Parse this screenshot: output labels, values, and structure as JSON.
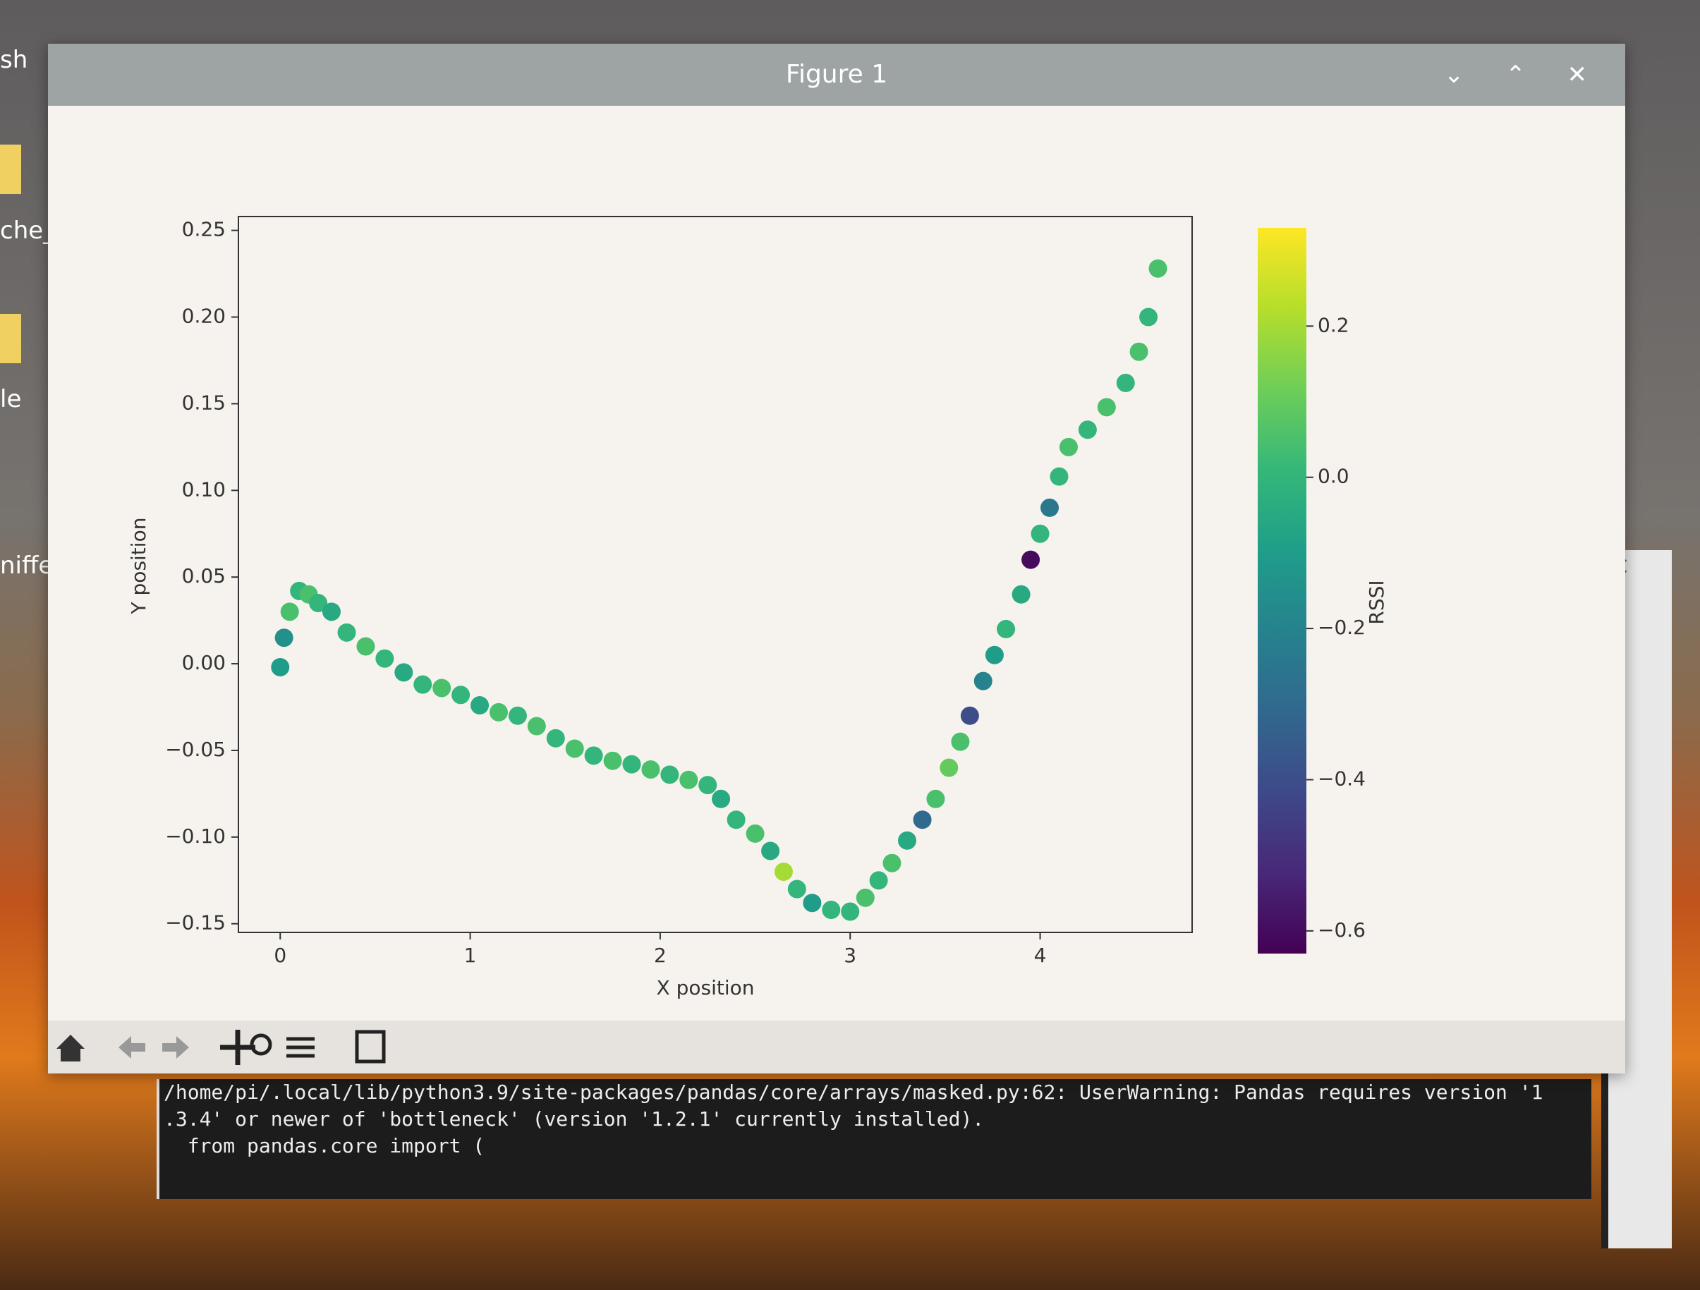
{
  "desktop": {
    "labels": [
      "sh",
      "che_",
      "le",
      "niffe"
    ]
  },
  "window": {
    "title": "Figure 1"
  },
  "chart_data": {
    "type": "scatter",
    "xlabel": "X position",
    "ylabel": "Y position",
    "x": [
      0.0,
      0.02,
      0.05,
      0.1,
      0.15,
      0.2,
      0.27,
      0.35,
      0.45,
      0.55,
      0.65,
      0.75,
      0.85,
      0.95,
      1.05,
      1.15,
      1.25,
      1.35,
      1.45,
      1.55,
      1.65,
      1.75,
      1.85,
      1.95,
      2.05,
      2.15,
      2.25,
      2.32,
      2.4,
      2.5,
      2.58,
      2.65,
      2.72,
      2.8,
      2.9,
      3.0,
      3.08,
      3.15,
      3.22,
      3.3,
      3.38,
      3.45,
      3.52,
      3.58,
      3.63,
      3.7,
      3.76,
      3.82,
      3.9,
      3.95,
      4.0,
      4.05,
      4.1,
      4.15,
      4.25,
      4.35,
      4.45,
      4.52,
      4.57,
      4.62
    ],
    "y": [
      -0.002,
      0.015,
      0.03,
      0.042,
      0.04,
      0.035,
      0.03,
      0.018,
      0.01,
      0.003,
      -0.005,
      -0.012,
      -0.014,
      -0.018,
      -0.024,
      -0.028,
      -0.03,
      -0.036,
      -0.043,
      -0.049,
      -0.053,
      -0.056,
      -0.058,
      -0.061,
      -0.064,
      -0.067,
      -0.07,
      -0.078,
      -0.09,
      -0.098,
      -0.108,
      -0.12,
      -0.13,
      -0.138,
      -0.142,
      -0.143,
      -0.135,
      -0.125,
      -0.115,
      -0.102,
      -0.09,
      -0.078,
      -0.06,
      -0.045,
      -0.03,
      -0.01,
      0.005,
      0.02,
      0.04,
      0.06,
      0.075,
      0.09,
      0.108,
      0.125,
      0.135,
      0.148,
      0.162,
      0.18,
      0.2,
      0.228
    ],
    "c": [
      -0.1,
      -0.15,
      0.05,
      0.0,
      0.05,
      0.0,
      -0.05,
      0.0,
      0.05,
      0.0,
      -0.05,
      0.0,
      0.05,
      0.0,
      -0.05,
      0.05,
      0.0,
      0.05,
      0.0,
      0.05,
      0.0,
      0.05,
      0.0,
      0.05,
      0.0,
      0.05,
      0.0,
      -0.05,
      0.0,
      0.05,
      -0.05,
      0.2,
      0.0,
      -0.1,
      0.0,
      0.0,
      0.05,
      0.0,
      0.05,
      -0.05,
      -0.3,
      0.05,
      0.1,
      0.05,
      -0.4,
      -0.2,
      -0.1,
      0.0,
      -0.05,
      -0.6,
      0.0,
      -0.25,
      0.0,
      0.05,
      0.0,
      0.05,
      0.0,
      0.05,
      0.0,
      0.05
    ],
    "colormap": "viridis",
    "colorbar_label": "RSSI",
    "clim": [
      -0.63,
      0.33
    ],
    "cticks": [
      0.2,
      {
        "value": 0,
        "label": "0.0"
      },
      {
        "value": -0.2,
        "label": "−0.2"
      },
      {
        "value": -0.4,
        "label": "−0.4"
      },
      {
        "value": -0.6,
        "label": "−0.6"
      }
    ],
    "xlim": [
      -0.22,
      4.8
    ],
    "xticks": [
      0,
      1,
      2,
      3,
      4
    ],
    "ylim": [
      -0.155,
      0.258
    ],
    "yticks": [
      0.25,
      {
        "value": 0.2,
        "label": "0.20"
      },
      0.15,
      {
        "value": 0.1,
        "label": "0.10"
      },
      0.05,
      {
        "value": 0,
        "label": "0.00"
      },
      {
        "value": -0.05,
        "label": "−0.05"
      },
      {
        "value": -0.1,
        "label": "−0.10"
      },
      {
        "value": -0.15,
        "label": "−0.15"
      }
    ]
  },
  "terminal": {
    "lines": [
      "/home/pi/.local/lib/python3.9/site-packages/pandas/core/arrays/masked.py:62: UserWarning: Pandas requires version '1",
      ".3.4' or newer of 'bottleneck' (version '1.2.1' currently installed).",
      "  from pandas.core import ("
    ]
  }
}
